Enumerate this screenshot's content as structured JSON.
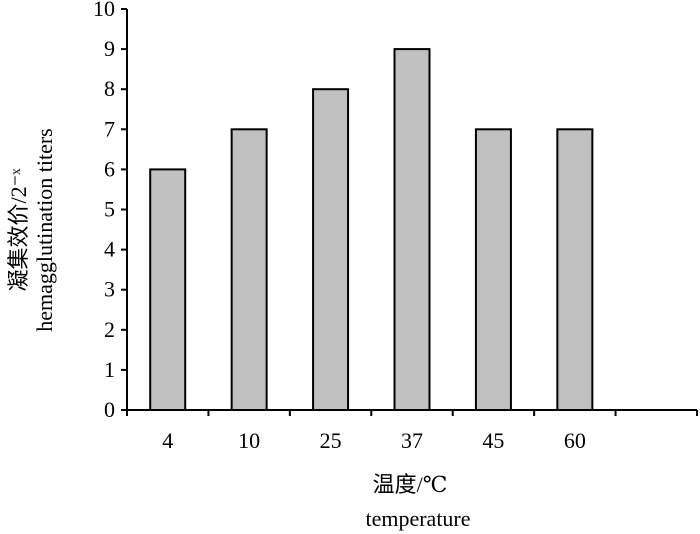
{
  "chart_data": {
    "type": "bar",
    "categories": [
      "4",
      "10",
      "25",
      "37",
      "45",
      "60",
      ""
    ],
    "values": [
      6,
      7,
      8,
      9,
      7,
      7,
      null
    ],
    "ylim": [
      0,
      10
    ],
    "yticks": [
      0,
      1,
      2,
      3,
      4,
      5,
      6,
      7,
      8,
      9,
      10
    ],
    "xlabel_cn": "温度/℃",
    "xlabel_en": "temperature",
    "ylabel_cn": "凝集效价/2⁻ˣ",
    "ylabel_en": "hemagglutination titers",
    "bar_color": "#c0c0c0",
    "bar_stroke": "#000000",
    "grid": false,
    "legend": "none"
  }
}
